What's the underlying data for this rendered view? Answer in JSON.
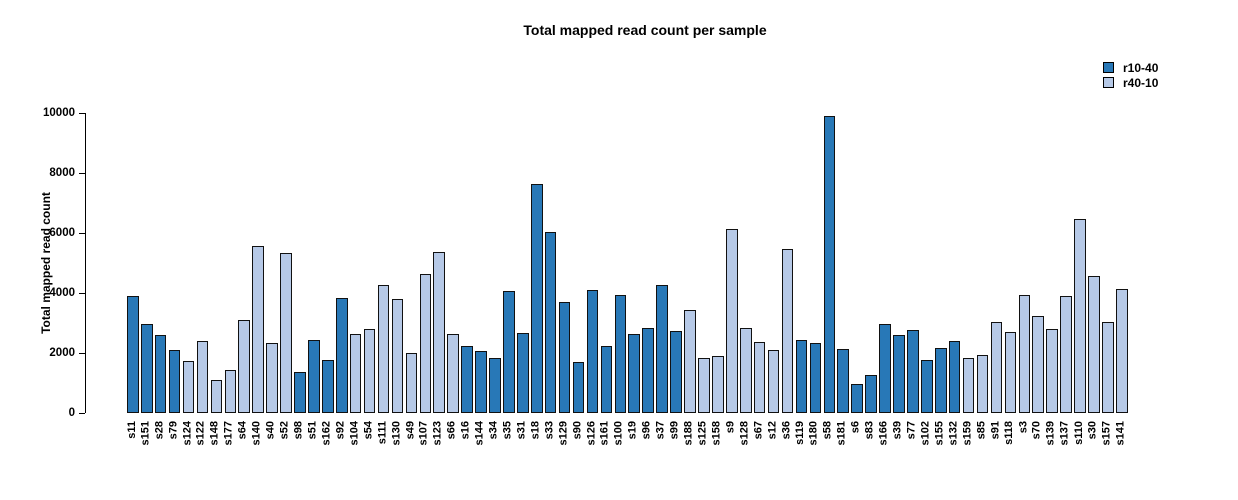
{
  "colors": {
    "dark_series": "#2878b7",
    "light_series": "#b6c9e7",
    "bar_border": "#111111"
  },
  "chart_data": {
    "type": "bar",
    "title": "Total mapped read count per sample",
    "xlabel": "",
    "ylabel": "Total mapped read count",
    "ylim": [
      0,
      10000
    ],
    "yticks": [
      0,
      2000,
      4000,
      6000,
      8000,
      10000
    ],
    "grid": false,
    "legend_position": "top-right",
    "series": [
      {
        "name": "r10-40",
        "color": "#2878b7"
      },
      {
        "name": "r40-10",
        "color": "#b6c9e7"
      }
    ],
    "bars": [
      {
        "label": "s11",
        "group": "r10-40",
        "value": 3890
      },
      {
        "label": "s151",
        "group": "r10-40",
        "value": 2980
      },
      {
        "label": "s28",
        "group": "r10-40",
        "value": 2600
      },
      {
        "label": "s79",
        "group": "r10-40",
        "value": 2110
      },
      {
        "label": "s124",
        "group": "r40-10",
        "value": 1740
      },
      {
        "label": "s122",
        "group": "r40-10",
        "value": 2410
      },
      {
        "label": "s148",
        "group": "r40-10",
        "value": 1090
      },
      {
        "label": "s177",
        "group": "r40-10",
        "value": 1440
      },
      {
        "label": "s64",
        "group": "r40-10",
        "value": 3110
      },
      {
        "label": "s140",
        "group": "r40-10",
        "value": 5560
      },
      {
        "label": "s40",
        "group": "r40-10",
        "value": 2350
      },
      {
        "label": "s52",
        "group": "r40-10",
        "value": 5320
      },
      {
        "label": "s98",
        "group": "r10-40",
        "value": 1380
      },
      {
        "label": "s51",
        "group": "r10-40",
        "value": 2430
      },
      {
        "label": "s162",
        "group": "r10-40",
        "value": 1760
      },
      {
        "label": "s92",
        "group": "r10-40",
        "value": 3850
      },
      {
        "label": "s104",
        "group": "r40-10",
        "value": 2630
      },
      {
        "label": "s54",
        "group": "r40-10",
        "value": 2810
      },
      {
        "label": "s111",
        "group": "r40-10",
        "value": 4260
      },
      {
        "label": "s130",
        "group": "r40-10",
        "value": 3810
      },
      {
        "label": "s49",
        "group": "r40-10",
        "value": 2000
      },
      {
        "label": "s107",
        "group": "r40-10",
        "value": 4640
      },
      {
        "label": "s123",
        "group": "r40-10",
        "value": 5360
      },
      {
        "label": "s66",
        "group": "r40-10",
        "value": 2640
      },
      {
        "label": "s16",
        "group": "r10-40",
        "value": 2250
      },
      {
        "label": "s144",
        "group": "r10-40",
        "value": 2070
      },
      {
        "label": "s34",
        "group": "r10-40",
        "value": 1820
      },
      {
        "label": "s35",
        "group": "r10-40",
        "value": 4080
      },
      {
        "label": "s31",
        "group": "r10-40",
        "value": 2670
      },
      {
        "label": "s18",
        "group": "r10-40",
        "value": 7650
      },
      {
        "label": "s33",
        "group": "r10-40",
        "value": 6020
      },
      {
        "label": "s129",
        "group": "r10-40",
        "value": 3700
      },
      {
        "label": "s90",
        "group": "r10-40",
        "value": 1700
      },
      {
        "label": "s126",
        "group": "r10-40",
        "value": 4090
      },
      {
        "label": "s161",
        "group": "r10-40",
        "value": 2240
      },
      {
        "label": "s100",
        "group": "r10-40",
        "value": 3950
      },
      {
        "label": "s19",
        "group": "r10-40",
        "value": 2630
      },
      {
        "label": "s96",
        "group": "r10-40",
        "value": 2830
      },
      {
        "label": "s37",
        "group": "r10-40",
        "value": 4260
      },
      {
        "label": "s99",
        "group": "r10-40",
        "value": 2730
      },
      {
        "label": "s188",
        "group": "r40-10",
        "value": 3430
      },
      {
        "label": "s125",
        "group": "r40-10",
        "value": 1830
      },
      {
        "label": "s158",
        "group": "r40-10",
        "value": 1910
      },
      {
        "label": "s9",
        "group": "r40-10",
        "value": 6140
      },
      {
        "label": "s128",
        "group": "r40-10",
        "value": 2850
      },
      {
        "label": "s67",
        "group": "r40-10",
        "value": 2360
      },
      {
        "label": "s12",
        "group": "r40-10",
        "value": 2110
      },
      {
        "label": "s36",
        "group": "r40-10",
        "value": 5470
      },
      {
        "label": "s119",
        "group": "r10-40",
        "value": 2450
      },
      {
        "label": "s180",
        "group": "r10-40",
        "value": 2320
      },
      {
        "label": "s58",
        "group": "r10-40",
        "value": 9900
      },
      {
        "label": "s181",
        "group": "r10-40",
        "value": 2120
      },
      {
        "label": "s6",
        "group": "r10-40",
        "value": 980
      },
      {
        "label": "s83",
        "group": "r10-40",
        "value": 1260
      },
      {
        "label": "s166",
        "group": "r10-40",
        "value": 2970
      },
      {
        "label": "s39",
        "group": "r10-40",
        "value": 2610
      },
      {
        "label": "s77",
        "group": "r10-40",
        "value": 2770
      },
      {
        "label": "s102",
        "group": "r10-40",
        "value": 1760
      },
      {
        "label": "s155",
        "group": "r10-40",
        "value": 2160
      },
      {
        "label": "s132",
        "group": "r10-40",
        "value": 2400
      },
      {
        "label": "s159",
        "group": "r40-10",
        "value": 1830
      },
      {
        "label": "s85",
        "group": "r40-10",
        "value": 1930
      },
      {
        "label": "s91",
        "group": "r40-10",
        "value": 3040
      },
      {
        "label": "s118",
        "group": "r40-10",
        "value": 2700
      },
      {
        "label": "s3",
        "group": "r40-10",
        "value": 3940
      },
      {
        "label": "s70",
        "group": "r40-10",
        "value": 3240
      },
      {
        "label": "s139",
        "group": "r40-10",
        "value": 2800
      },
      {
        "label": "s137",
        "group": "r40-10",
        "value": 3910
      },
      {
        "label": "s110",
        "group": "r40-10",
        "value": 6480
      },
      {
        "label": "s30",
        "group": "r40-10",
        "value": 4580
      },
      {
        "label": "s157",
        "group": "r40-10",
        "value": 3040
      },
      {
        "label": "s141",
        "group": "r40-10",
        "value": 4140
      }
    ]
  }
}
